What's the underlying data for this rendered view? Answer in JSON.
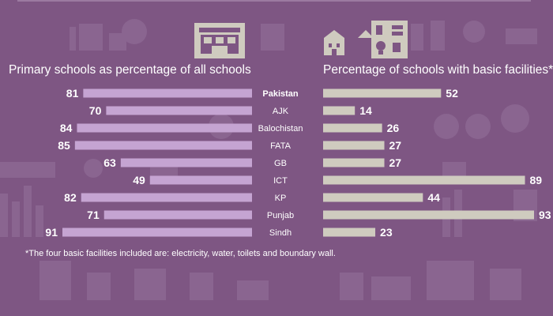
{
  "colors": {
    "background": "#7e5683",
    "left_bar": "#c5a4d2",
    "right_bar": "#cfcbbf",
    "text": "#ffffff",
    "icon_box": "#cfcbbf",
    "icon_fill": "#7e5683"
  },
  "icons": {
    "left": "school-building-icon",
    "right": "school-facilities-icon"
  },
  "chart_data": [
    {
      "type": "bar",
      "orientation": "horizontal",
      "title": "Primary schools as percentage of all schools",
      "categories": [
        "Pakistan",
        "AJK",
        "Balochistan",
        "FATA",
        "GB",
        "ICT",
        "KP",
        "Punjab",
        "Sindh"
      ],
      "values": [
        81,
        70,
        84,
        85,
        63,
        49,
        82,
        71,
        91
      ],
      "direction": "right-to-left",
      "xlim": [
        0,
        100
      ]
    },
    {
      "type": "bar",
      "orientation": "horizontal",
      "title": "Percentage of schools with basic facilities*",
      "categories": [
        "Pakistan",
        "AJK",
        "Balochistan",
        "FATA",
        "GB",
        "ICT",
        "KP",
        "Punjab",
        "Sindh"
      ],
      "values": [
        52,
        14,
        26,
        27,
        27,
        89,
        44,
        93,
        23
      ],
      "direction": "left-to-right",
      "xlim": [
        0,
        100
      ]
    }
  ],
  "footnote": "*The four basic facilities included are: electricity, water, toilets and boundary wall."
}
